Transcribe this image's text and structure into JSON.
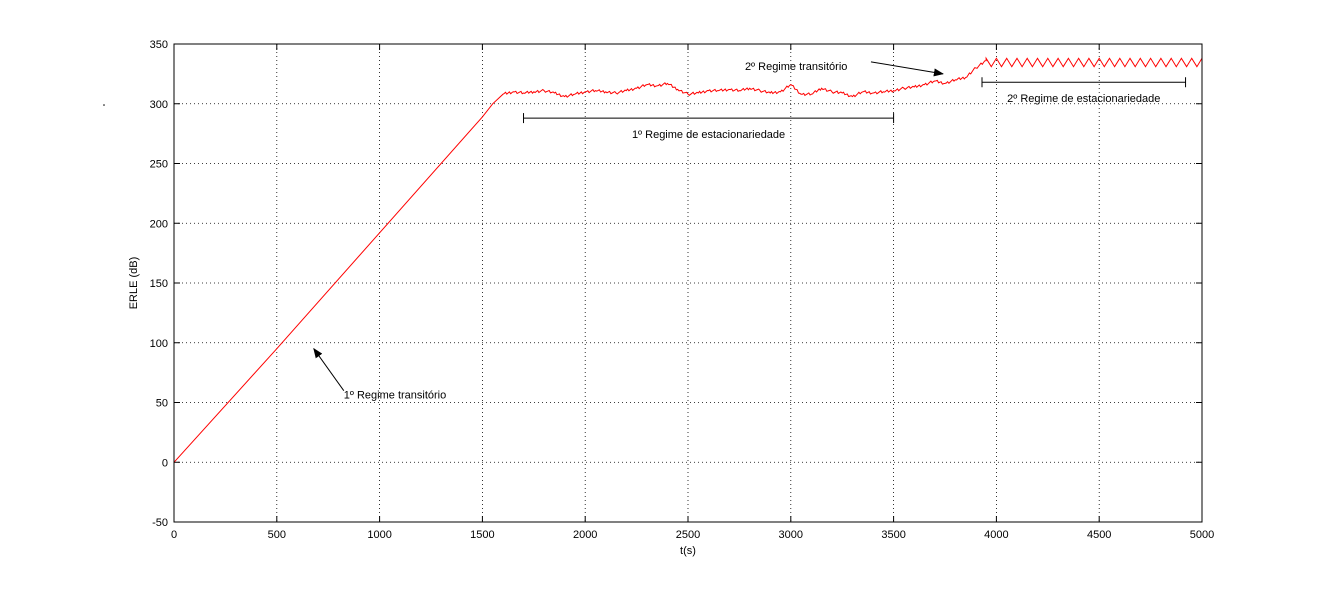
{
  "chart_data": {
    "type": "line",
    "title": "",
    "xlabel": "t(s)",
    "ylabel": "ERLE (dB)",
    "xlim": [
      0,
      5000
    ],
    "ylim": [
      -50,
      350
    ],
    "x_ticks": [
      0,
      500,
      1000,
      1500,
      2000,
      2500,
      3000,
      3500,
      4000,
      4500,
      5000
    ],
    "y_ticks": [
      -50,
      0,
      50,
      100,
      150,
      200,
      250,
      300,
      350
    ],
    "grid": true,
    "legend": "none",
    "series": [
      {
        "color": "#ff0000",
        "style": "solid",
        "x": [
          0,
          500,
          1000,
          1500,
          1550,
          1600,
          1650,
          1700,
          1750,
          1800,
          1850,
          1900,
          1950,
          2000,
          2050,
          2100,
          2150,
          2200,
          2250,
          2300,
          2350,
          2400,
          2450,
          2500,
          2550,
          2600,
          2650,
          2700,
          2750,
          2800,
          2850,
          2900,
          2950,
          3000,
          3050,
          3100,
          3150,
          3200,
          3250,
          3300,
          3350,
          3400,
          3450,
          3500,
          3550,
          3600,
          3650,
          3700,
          3750,
          3800,
          3850,
          3900,
          3950,
          4000,
          5000
        ],
        "y": [
          0,
          95,
          192,
          289,
          300,
          308,
          310,
          309,
          310,
          311,
          309,
          306,
          308,
          310,
          311,
          310,
          309,
          311,
          313,
          316,
          315,
          317,
          312,
          308,
          309,
          311,
          311,
          312,
          311,
          313,
          311,
          309,
          310,
          316,
          308,
          308,
          313,
          310,
          309,
          306,
          310,
          309,
          310,
          311,
          313,
          314,
          316,
          319,
          317,
          320,
          322,
          330,
          336,
          337,
          337
        ],
        "oscillation": {
          "from_x": 3950,
          "to_x": 5000,
          "low": 331,
          "high": 338,
          "period": 50
        }
      }
    ],
    "annotations": [
      {
        "text": "1º Regime transitório",
        "type": "arrow",
        "points_to": [
          680,
          95
        ]
      },
      {
        "text": "2º Regime transitório",
        "type": "arrow",
        "points_to": [
          3740,
          325
        ]
      },
      {
        "text": "1º Regime de estacionariedade",
        "type": "span",
        "x_range": [
          1700,
          3500
        ],
        "at_y": 288
      },
      {
        "text": "2º Regime de estacionariedade",
        "type": "span",
        "x_range": [
          3930,
          4920
        ],
        "at_y": 318
      }
    ]
  }
}
